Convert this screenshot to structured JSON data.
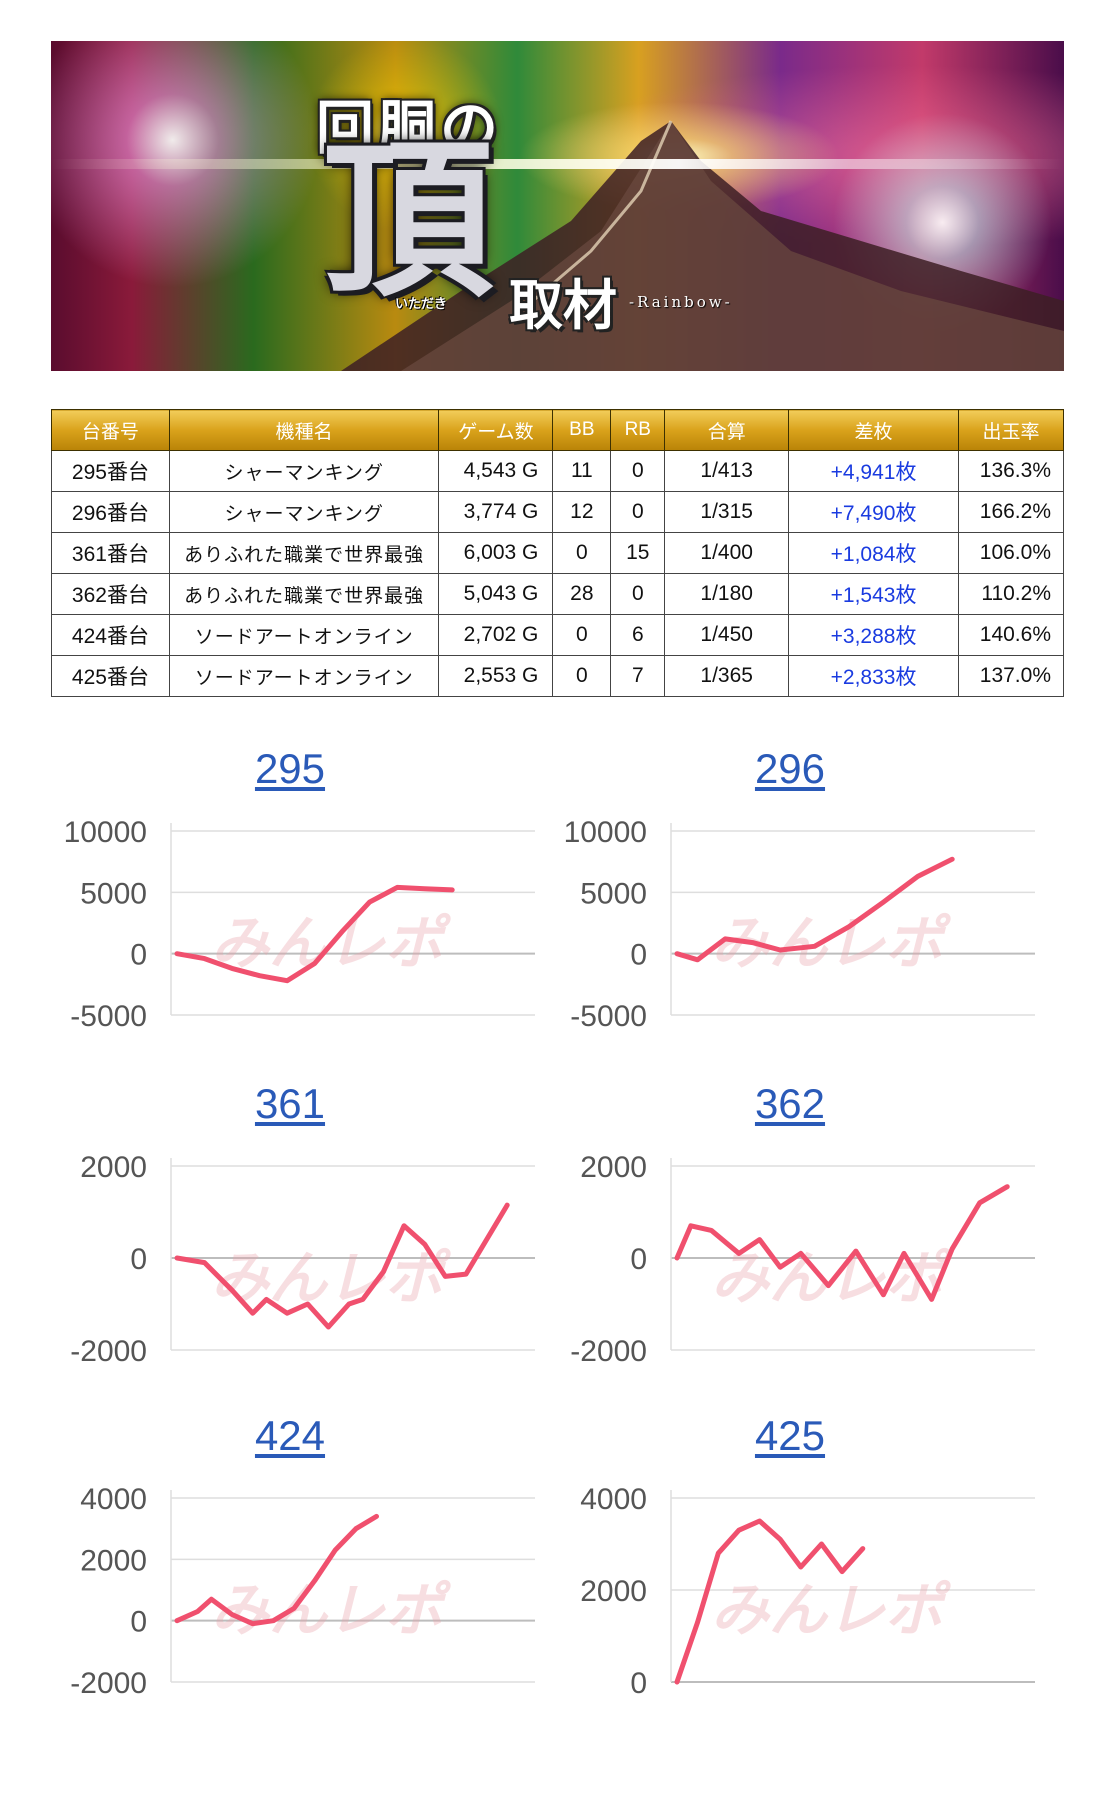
{
  "banner": {
    "title_line1": "回胴の",
    "title_big": "頂",
    "title_line2": "取材",
    "ruby": "いただき",
    "subtitle": "-Rainbow-"
  },
  "table": {
    "headers": [
      "台番号",
      "機種名",
      "ゲーム数",
      "BB",
      "RB",
      "合算",
      "差枚",
      "出玉率"
    ],
    "rows": [
      [
        "295番台",
        "シャーマンキング",
        "4,543 G",
        "11",
        "0",
        "1/413",
        "+4,941枚",
        "136.3%"
      ],
      [
        "296番台",
        "シャーマンキング",
        "3,774 G",
        "12",
        "0",
        "1/315",
        "+7,490枚",
        "166.2%"
      ],
      [
        "361番台",
        "ありふれた職業で世界最強",
        "6,003 G",
        "0",
        "15",
        "1/400",
        "+1,084枚",
        "106.0%"
      ],
      [
        "362番台",
        "ありふれた職業で世界最強",
        "5,043 G",
        "28",
        "0",
        "1/180",
        "+1,543枚",
        "110.2%"
      ],
      [
        "424番台",
        "ソードアートオンライン",
        "2,702 G",
        "0",
        "6",
        "1/450",
        "+3,288枚",
        "140.6%"
      ],
      [
        "425番台",
        "ソードアートオンライン",
        "2,553 G",
        "0",
        "7",
        "1/365",
        "+2,833枚",
        "137.0%"
      ]
    ]
  },
  "watermark": "みんレポ",
  "colors": {
    "line": "#f0506e",
    "header_gold": "#d9a21b",
    "plus_text": "#1a3be0",
    "title_link": "#2a5ab8"
  },
  "chart_data": [
    {
      "type": "line",
      "title": "295",
      "ylim": [
        -5000,
        10000
      ],
      "yticks": [
        10000,
        5000,
        0,
        -5000
      ],
      "x": [
        0,
        4,
        8,
        12,
        16,
        20,
        24,
        28,
        32,
        36,
        40
      ],
      "values": [
        0,
        -400,
        -1200,
        -1800,
        -2200,
        -800,
        1800,
        4200,
        5400,
        5300,
        5200
      ]
    },
    {
      "type": "line",
      "title": "296",
      "ylim": [
        -5000,
        10000
      ],
      "yticks": [
        10000,
        5000,
        0,
        -5000
      ],
      "x": [
        0,
        3,
        7,
        11,
        15,
        20,
        25,
        30,
        35,
        40
      ],
      "values": [
        0,
        -500,
        1200,
        900,
        300,
        600,
        2200,
        4200,
        6300,
        7700
      ]
    },
    {
      "type": "line",
      "title": "361",
      "ylim": [
        -2000,
        2000
      ],
      "yticks": [
        2000,
        0,
        -2000
      ],
      "x": [
        0,
        4,
        8,
        11,
        13,
        16,
        19,
        22,
        25,
        27,
        30,
        33,
        36,
        39,
        42,
        45,
        48
      ],
      "values": [
        0,
        -100,
        -700,
        -1200,
        -900,
        -1200,
        -1000,
        -1500,
        -1000,
        -900,
        -300,
        700,
        300,
        -400,
        -350,
        400,
        1150
      ]
    },
    {
      "type": "line",
      "title": "362",
      "ylim": [
        -2000,
        2000
      ],
      "yticks": [
        2000,
        0,
        -2000
      ],
      "x": [
        0,
        2,
        5,
        9,
        12,
        15,
        18,
        22,
        26,
        30,
        33,
        37,
        40,
        44,
        48
      ],
      "values": [
        0,
        700,
        600,
        100,
        400,
        -200,
        100,
        -600,
        150,
        -800,
        100,
        -900,
        200,
        1200,
        1550
      ]
    },
    {
      "type": "line",
      "title": "424",
      "ylim": [
        -2000,
        4000
      ],
      "yticks": [
        4000,
        2000,
        0,
        -2000
      ],
      "x": [
        0,
        3,
        5,
        8,
        11,
        14,
        17,
        20,
        23,
        26,
        29
      ],
      "values": [
        0,
        300,
        700,
        200,
        -100,
        0,
        400,
        1300,
        2300,
        3000,
        3400
      ]
    },
    {
      "type": "line",
      "title": "425",
      "ylim": [
        0,
        4000
      ],
      "yticks": [
        4000,
        2000,
        0
      ],
      "x": [
        0,
        3,
        6,
        9,
        12,
        15,
        18,
        21,
        24,
        27
      ],
      "values": [
        0,
        1300,
        2800,
        3300,
        3500,
        3100,
        2500,
        3000,
        2400,
        2900
      ]
    }
  ]
}
